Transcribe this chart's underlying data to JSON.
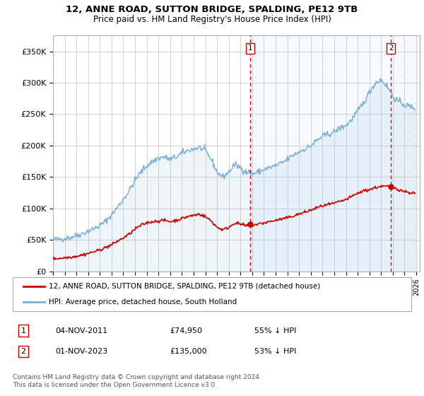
{
  "title": "12, ANNE ROAD, SUTTON BRIDGE, SPALDING, PE12 9TB",
  "subtitle": "Price paid vs. HM Land Registry's House Price Index (HPI)",
  "ylabel_ticks": [
    "£0",
    "£50K",
    "£100K",
    "£150K",
    "£200K",
    "£250K",
    "£300K",
    "£350K"
  ],
  "ylabel_values": [
    0,
    50000,
    100000,
    150000,
    200000,
    250000,
    300000,
    350000
  ],
  "ylim": [
    0,
    375000
  ],
  "xlim_start": 1995.0,
  "xlim_end": 2026.3,
  "hpi_color": "#7aaed4",
  "price_color": "#cc0000",
  "bg_color": "#ddeeff",
  "plot_bg": "#ffffff",
  "grid_color": "#cccccc",
  "sale1_date": "04-NOV-2011",
  "sale1_price": "£74,950",
  "sale1_pct": "55% ↓ HPI",
  "sale1_x": 2011.84,
  "sale1_y": 74950,
  "sale2_date": "01-NOV-2023",
  "sale2_price": "£135,000",
  "sale2_pct": "53% ↓ HPI",
  "sale2_x": 2023.84,
  "sale2_y": 135000,
  "legend_label1": "12, ANNE ROAD, SUTTON BRIDGE, SPALDING, PE12 9TB (detached house)",
  "legend_label2": "HPI: Average price, detached house, South Holland",
  "footnote": "Contains HM Land Registry data © Crown copyright and database right 2024.\nThis data is licensed under the Open Government Licence v3.0.",
  "vline_color": "#cc0000",
  "shade_fill_color": "#ddeeff",
  "hatch_fill_color": "#ccddf0"
}
